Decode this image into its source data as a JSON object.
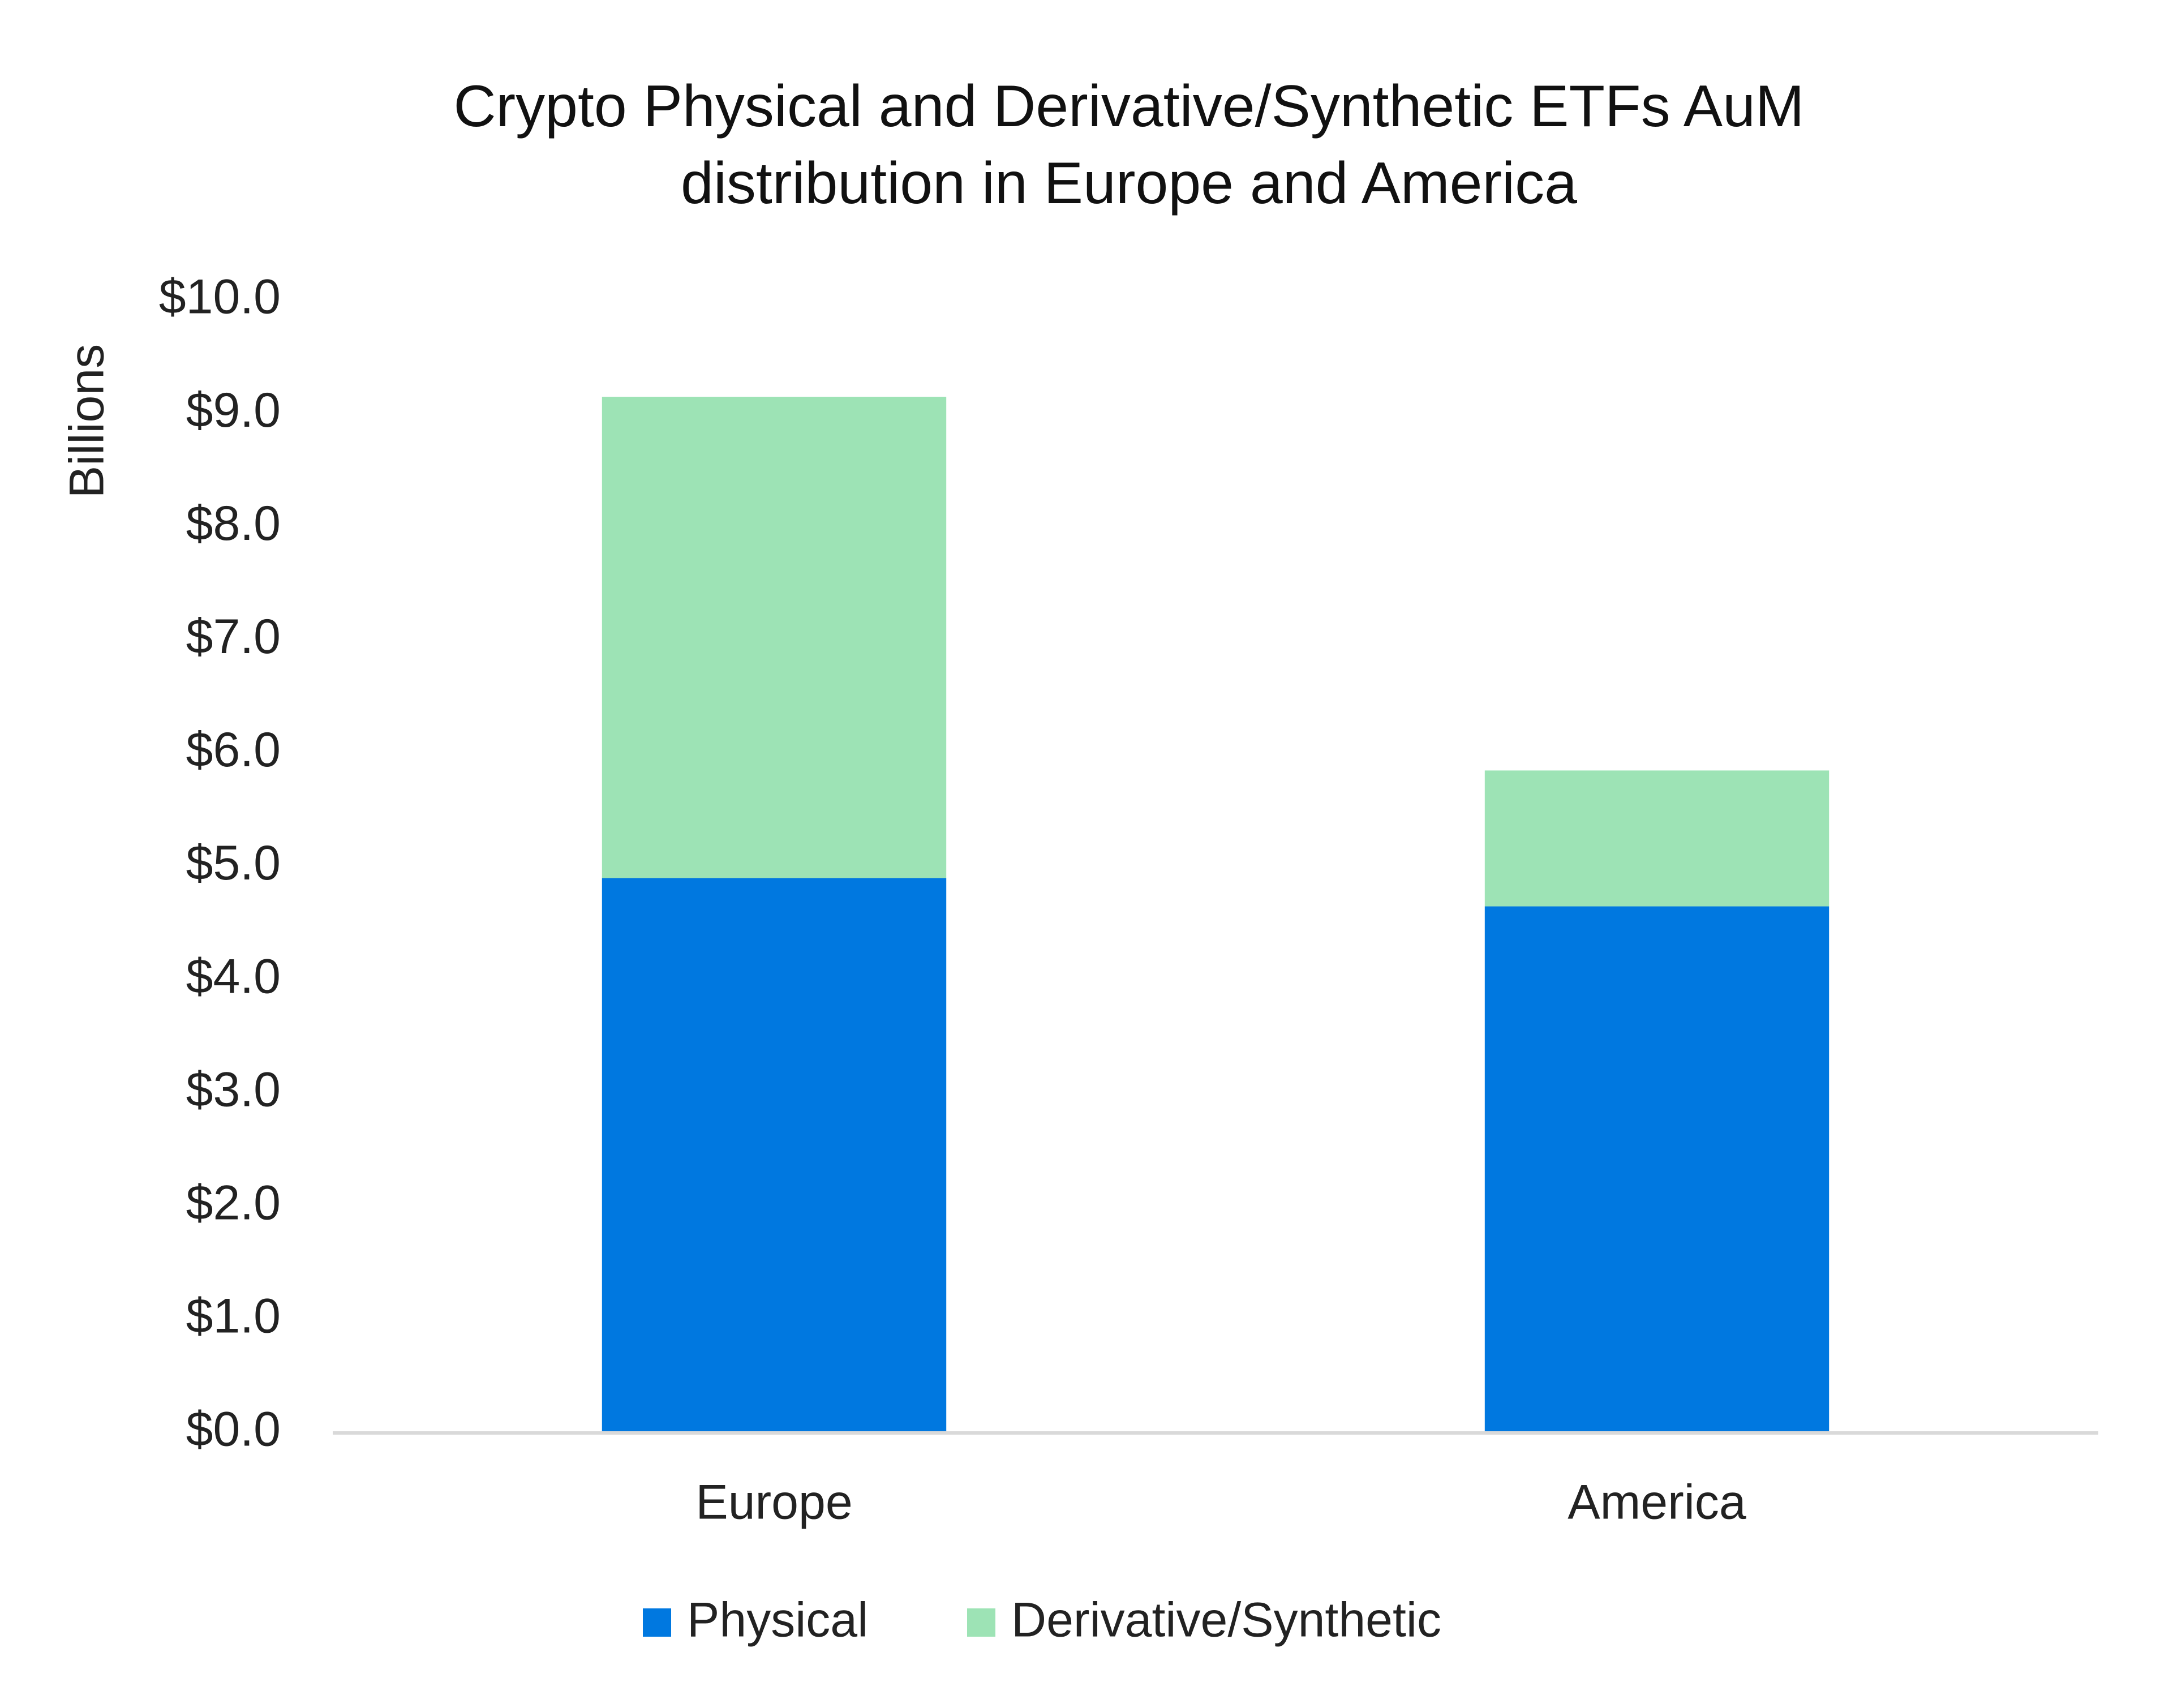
{
  "chart_data": {
    "type": "stacked_bar",
    "title": "Crypto Physical and Derivative/Synthetic ETFs AuM distribution in Europe and America",
    "y_axis_label": "Billions",
    "categories": [
      "Europe",
      "America"
    ],
    "series": [
      {
        "name": "Physical",
        "color": "#0078e0",
        "values": [
          4.9,
          4.65
        ]
      },
      {
        "name": "Derivative/Synthetic",
        "color": "#9de3b5",
        "values": [
          4.25,
          1.2
        ]
      }
    ],
    "ylim": [
      0,
      10
    ],
    "yticks": [
      {
        "value": 0,
        "label": "$0.0"
      },
      {
        "value": 1,
        "label": "$1.0"
      },
      {
        "value": 2,
        "label": "$2.0"
      },
      {
        "value": 3,
        "label": "$3.0"
      },
      {
        "value": 4,
        "label": "$4.0"
      },
      {
        "value": 5,
        "label": "$5.0"
      },
      {
        "value": 6,
        "label": "$6.0"
      },
      {
        "value": 7,
        "label": "$7.0"
      },
      {
        "value": 8,
        "label": "$8.0"
      },
      {
        "value": 9,
        "label": "$9.0"
      },
      {
        "value": 10,
        "label": "$10.0"
      }
    ],
    "grid": false,
    "legend": "bottom"
  }
}
